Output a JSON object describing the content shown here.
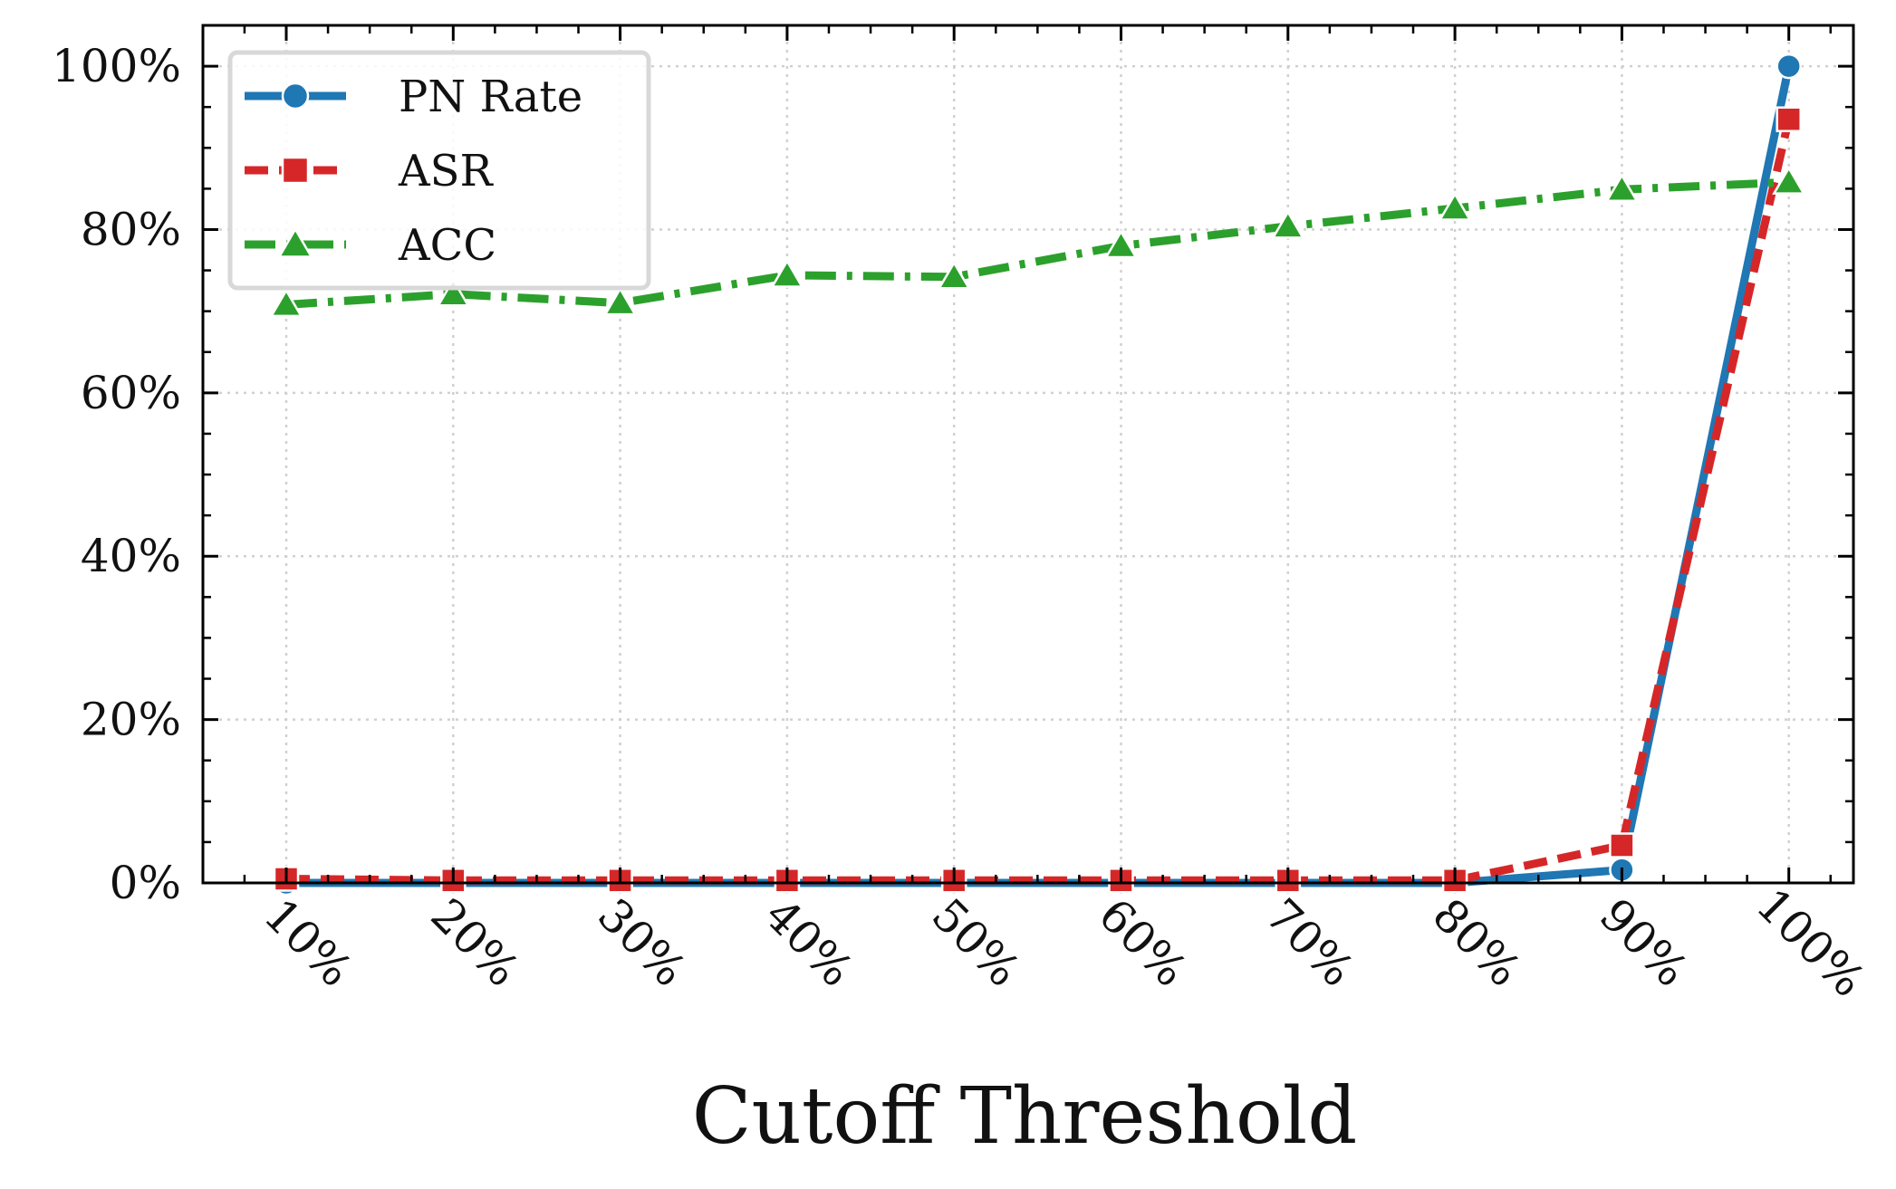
{
  "chart_data": {
    "type": "line",
    "title": "",
    "xlabel": "Cutoff Threshold",
    "ylabel": "",
    "categories": [
      "10%",
      "20%",
      "30%",
      "40%",
      "50%",
      "60%",
      "70%",
      "80%",
      "90%",
      "100%"
    ],
    "ylim": [
      0,
      105
    ],
    "yticks": [
      0,
      20,
      40,
      60,
      80,
      100
    ],
    "ytick_labels": [
      "0%",
      "20%",
      "40%",
      "60%",
      "80%",
      "100%"
    ],
    "grid": true,
    "legend_position": "top-left",
    "series": [
      {
        "name": "PN Rate",
        "color": "#1f77b4",
        "marker": "circle",
        "line_style": "solid",
        "values": [
          0,
          0,
          0,
          0,
          0,
          0,
          0,
          0,
          1.6,
          100
        ]
      },
      {
        "name": "ASR",
        "color": "#d62728",
        "marker": "square",
        "line_style": "dashed",
        "values": [
          0.5,
          0.3,
          0.3,
          0.3,
          0.3,
          0.3,
          0.3,
          0.3,
          4.6,
          93.5
        ]
      },
      {
        "name": "ACC",
        "color": "#2ca02c",
        "marker": "triangle",
        "line_style": "dashdot",
        "values": [
          70.8,
          72.1,
          71.0,
          74.4,
          74.2,
          78.0,
          80.4,
          82.6,
          84.9,
          85.8
        ]
      }
    ]
  }
}
